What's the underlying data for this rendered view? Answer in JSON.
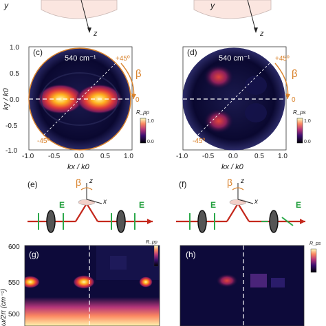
{
  "panels": {
    "c": {
      "tag": "(c)",
      "wavenumber": "540 cm⁻¹",
      "angle_pos": "+45º",
      "angle_neg": "-45º",
      "zero": "0",
      "beta": "β",
      "cbar_label": "R_pp",
      "cbar_max": "1.0",
      "cbar_min": "0.0"
    },
    "d": {
      "tag": "(d)",
      "wavenumber": "540 cm⁻¹",
      "angle_pos": "+45º",
      "angle_neg": "-45º",
      "zero": "0",
      "beta": "β",
      "cbar_label": "R_ps",
      "cbar_max": "1.0",
      "cbar_min": "0.0"
    },
    "e": {
      "tag": "(e)",
      "beta": "β",
      "z": "z",
      "x": "x",
      "E1": "E",
      "E2": "E"
    },
    "f": {
      "tag": "(f)",
      "beta": "β",
      "z": "z",
      "x": "x",
      "E1": "E",
      "E2": "E"
    },
    "g": {
      "tag": "(g)",
      "cbar_label": "R_pp"
    },
    "h": {
      "tag": "(h)",
      "cbar_label": "R_ps"
    }
  },
  "top_axes": {
    "y_left": "y",
    "z_left": "z",
    "y_right": "y",
    "z_right": "z"
  },
  "axes": {
    "kx_label": "kx / k0",
    "ky_label": "ky / k0",
    "x_ticks": [
      "-1.0",
      "-0.5",
      "0.0",
      "0.5",
      "1.0"
    ],
    "y_ticks": [
      "1.0",
      "0.5",
      "0.0",
      "-0.5",
      "-1.0"
    ],
    "omega_label": "ω/2π (cm⁻¹)",
    "omega_ticks": [
      "600",
      "550",
      "500"
    ]
  },
  "colors": {
    "accent_orange": "#d9822b",
    "field_green": "#2ba84a",
    "beam_red": "#c4281c",
    "map_dark": "#0d0a3a"
  }
}
